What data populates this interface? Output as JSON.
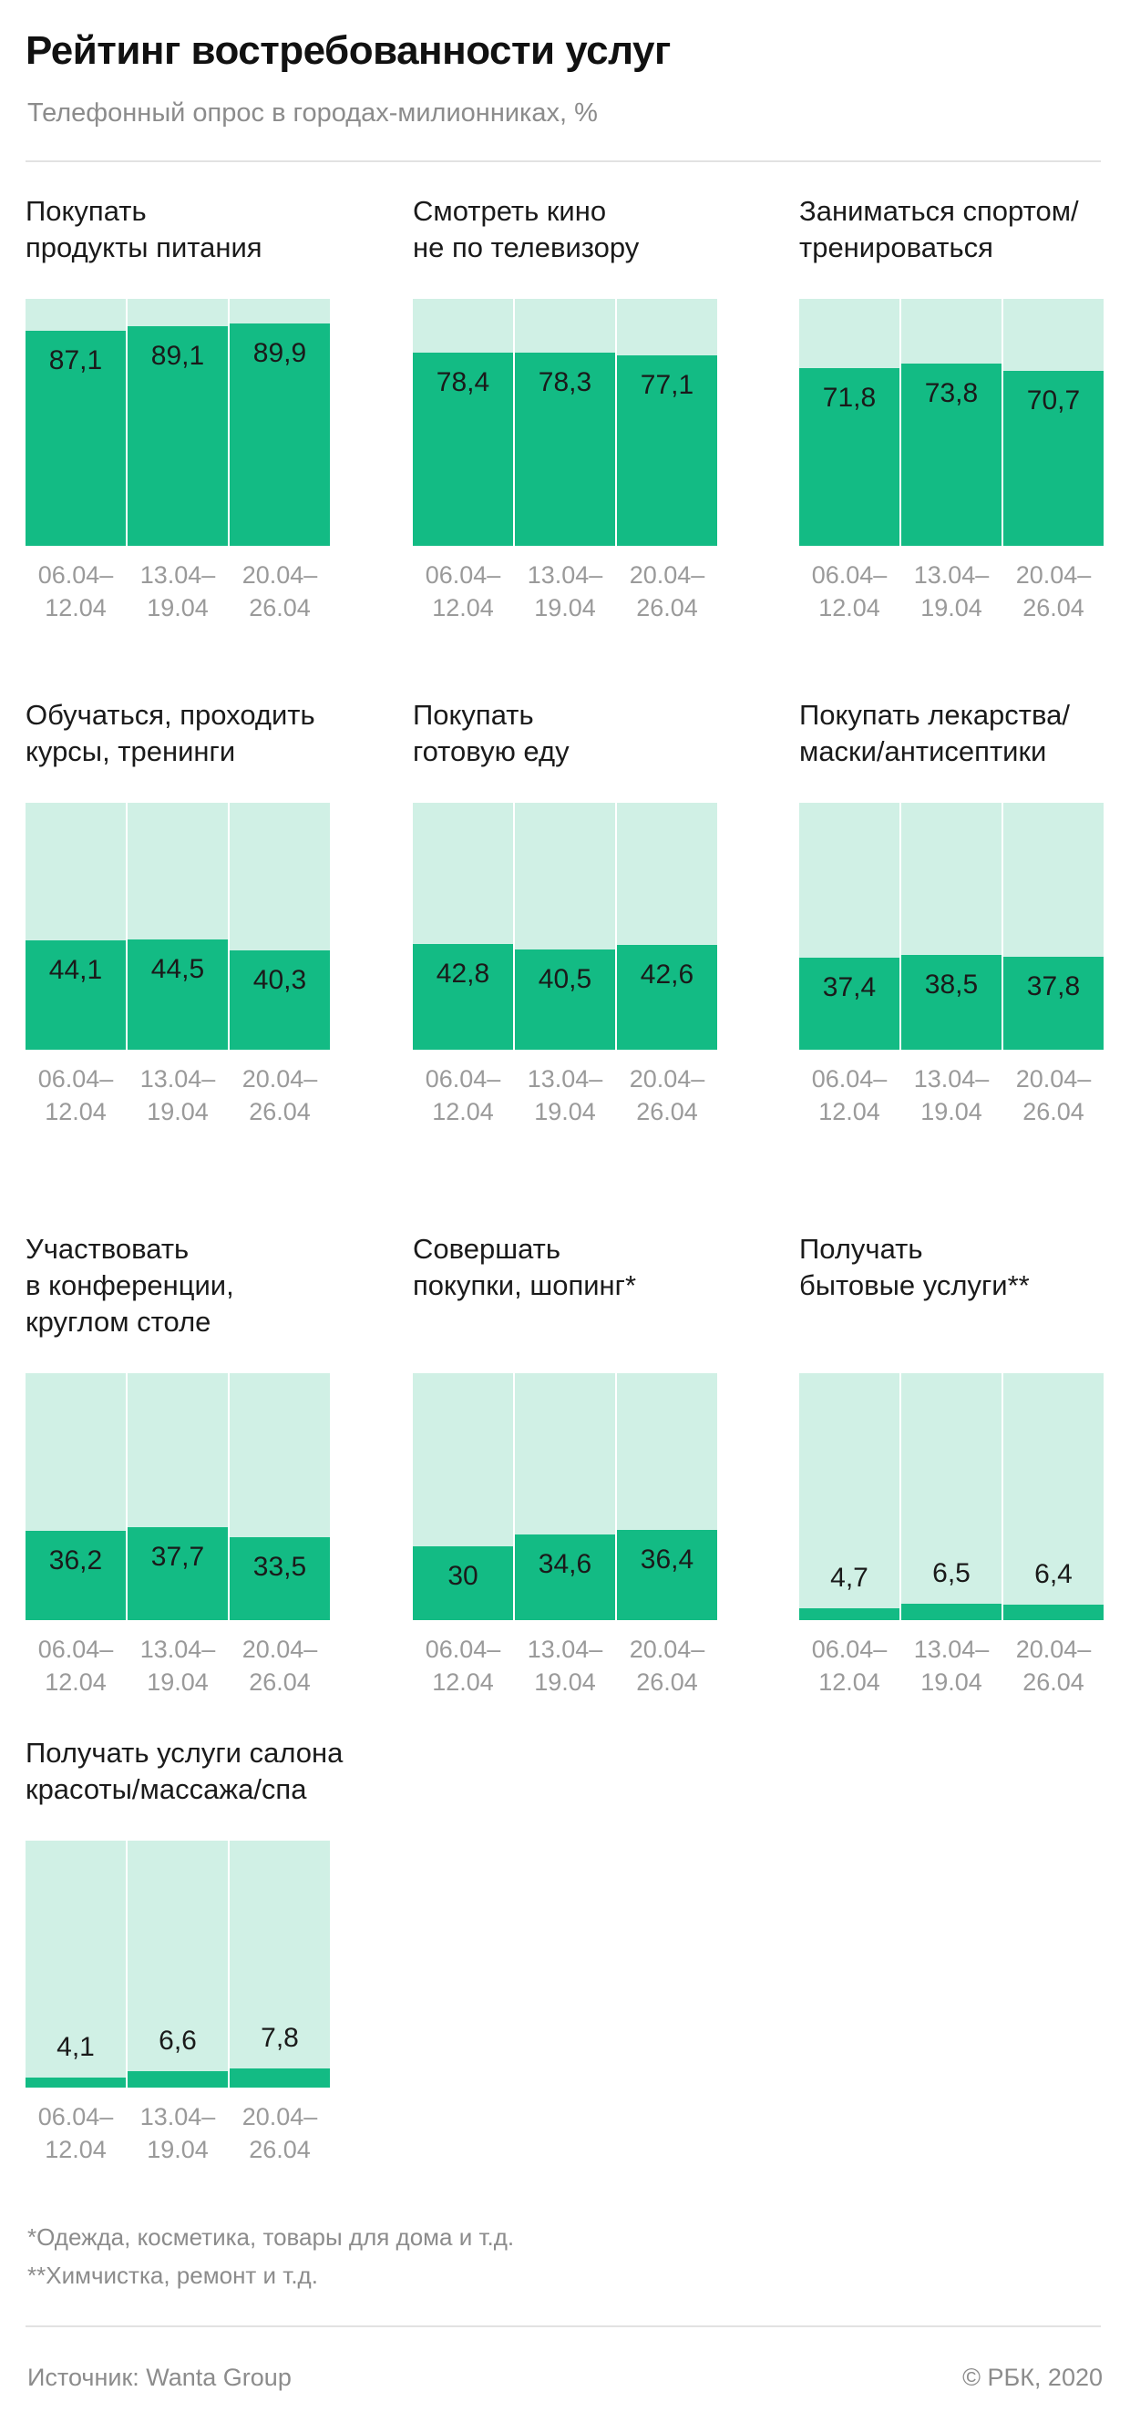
{
  "header": {
    "title": "Рейтинг востребованности услуг",
    "subtitle": "Телефонный опрос в городах-милионниках, %"
  },
  "colors": {
    "bar": "#13bb84",
    "track": "#d0f0e5",
    "tick": "#9a9a9a"
  },
  "chart_data": [
    {
      "type": "bar",
      "title": "Покупать\nпродукты питания",
      "categories": [
        "06.04–\n12.04",
        "13.04–\n19.04",
        "20.04–\n26.04"
      ],
      "values": [
        87.1,
        89.1,
        89.9
      ],
      "labels": [
        "87,1",
        "89,1",
        "89,9"
      ],
      "ylim": [
        0,
        100
      ]
    },
    {
      "type": "bar",
      "title": "Смотреть кино\nне по телевизору",
      "categories": [
        "06.04–\n12.04",
        "13.04–\n19.04",
        "20.04–\n26.04"
      ],
      "values": [
        78.4,
        78.3,
        77.1
      ],
      "labels": [
        "78,4",
        "78,3",
        "77,1"
      ],
      "ylim": [
        0,
        100
      ]
    },
    {
      "type": "bar",
      "title": "Заниматься спортом/\nтренироваться",
      "categories": [
        "06.04–\n12.04",
        "13.04–\n19.04",
        "20.04–\n26.04"
      ],
      "values": [
        71.8,
        73.8,
        70.7
      ],
      "labels": [
        "71,8",
        "73,8",
        "70,7"
      ],
      "ylim": [
        0,
        100
      ]
    },
    {
      "type": "bar",
      "title": "Обучаться, проходить\nкурсы, тренинги",
      "categories": [
        "06.04–\n12.04",
        "13.04–\n19.04",
        "20.04–\n26.04"
      ],
      "values": [
        44.1,
        44.5,
        40.3
      ],
      "labels": [
        "44,1",
        "44,5",
        "40,3"
      ],
      "ylim": [
        0,
        100
      ]
    },
    {
      "type": "bar",
      "title": "Покупать\nготовую еду",
      "categories": [
        "06.04–\n12.04",
        "13.04–\n19.04",
        "20.04–\n26.04"
      ],
      "values": [
        42.8,
        40.5,
        42.6
      ],
      "labels": [
        "42,8",
        "40,5",
        "42,6"
      ],
      "ylim": [
        0,
        100
      ]
    },
    {
      "type": "bar",
      "title": "Покупать лекарства/\nмаски/антисептики",
      "categories": [
        "06.04–\n12.04",
        "13.04–\n19.04",
        "20.04–\n26.04"
      ],
      "values": [
        37.4,
        38.5,
        37.8
      ],
      "labels": [
        "37,4",
        "38,5",
        "37,8"
      ],
      "ylim": [
        0,
        100
      ]
    },
    {
      "type": "bar",
      "title": "Участвовать\nв конференции,\nкруглом столе",
      "categories": [
        "06.04–\n12.04",
        "13.04–\n19.04",
        "20.04–\n26.04"
      ],
      "values": [
        36.2,
        37.7,
        33.5
      ],
      "labels": [
        "36,2",
        "37,7",
        "33,5"
      ],
      "ylim": [
        0,
        100
      ]
    },
    {
      "type": "bar",
      "title": "Совершать\nпокупки, шопинг*",
      "categories": [
        "06.04–\n12.04",
        "13.04–\n19.04",
        "20.04–\n26.04"
      ],
      "values": [
        30,
        34.6,
        36.4
      ],
      "labels": [
        "30",
        "34,6",
        "36,4"
      ],
      "ylim": [
        0,
        100
      ]
    },
    {
      "type": "bar",
      "title": "Получать\nбытовые услуги**",
      "categories": [
        "06.04–\n12.04",
        "13.04–\n19.04",
        "20.04–\n26.04"
      ],
      "values": [
        4.7,
        6.5,
        6.4
      ],
      "labels": [
        "4,7",
        "6,5",
        "6,4"
      ],
      "ylim": [
        0,
        100
      ]
    },
    {
      "type": "bar",
      "title": "Получать услуги салона\nкрасоты/массажа/спа",
      "categories": [
        "06.04–\n12.04",
        "13.04–\n19.04",
        "20.04–\n26.04"
      ],
      "values": [
        4.1,
        6.6,
        7.8
      ],
      "labels": [
        "4,1",
        "6,6",
        "7,8"
      ],
      "ylim": [
        0,
        100
      ]
    }
  ],
  "notes": [
    "*Одежда, косметика, товары для дома и т.д.",
    "**Химчистка, ремонт и т.д."
  ],
  "footer": {
    "source": "Источник: Wanta Group",
    "copyright": "© РБК, 2020"
  }
}
